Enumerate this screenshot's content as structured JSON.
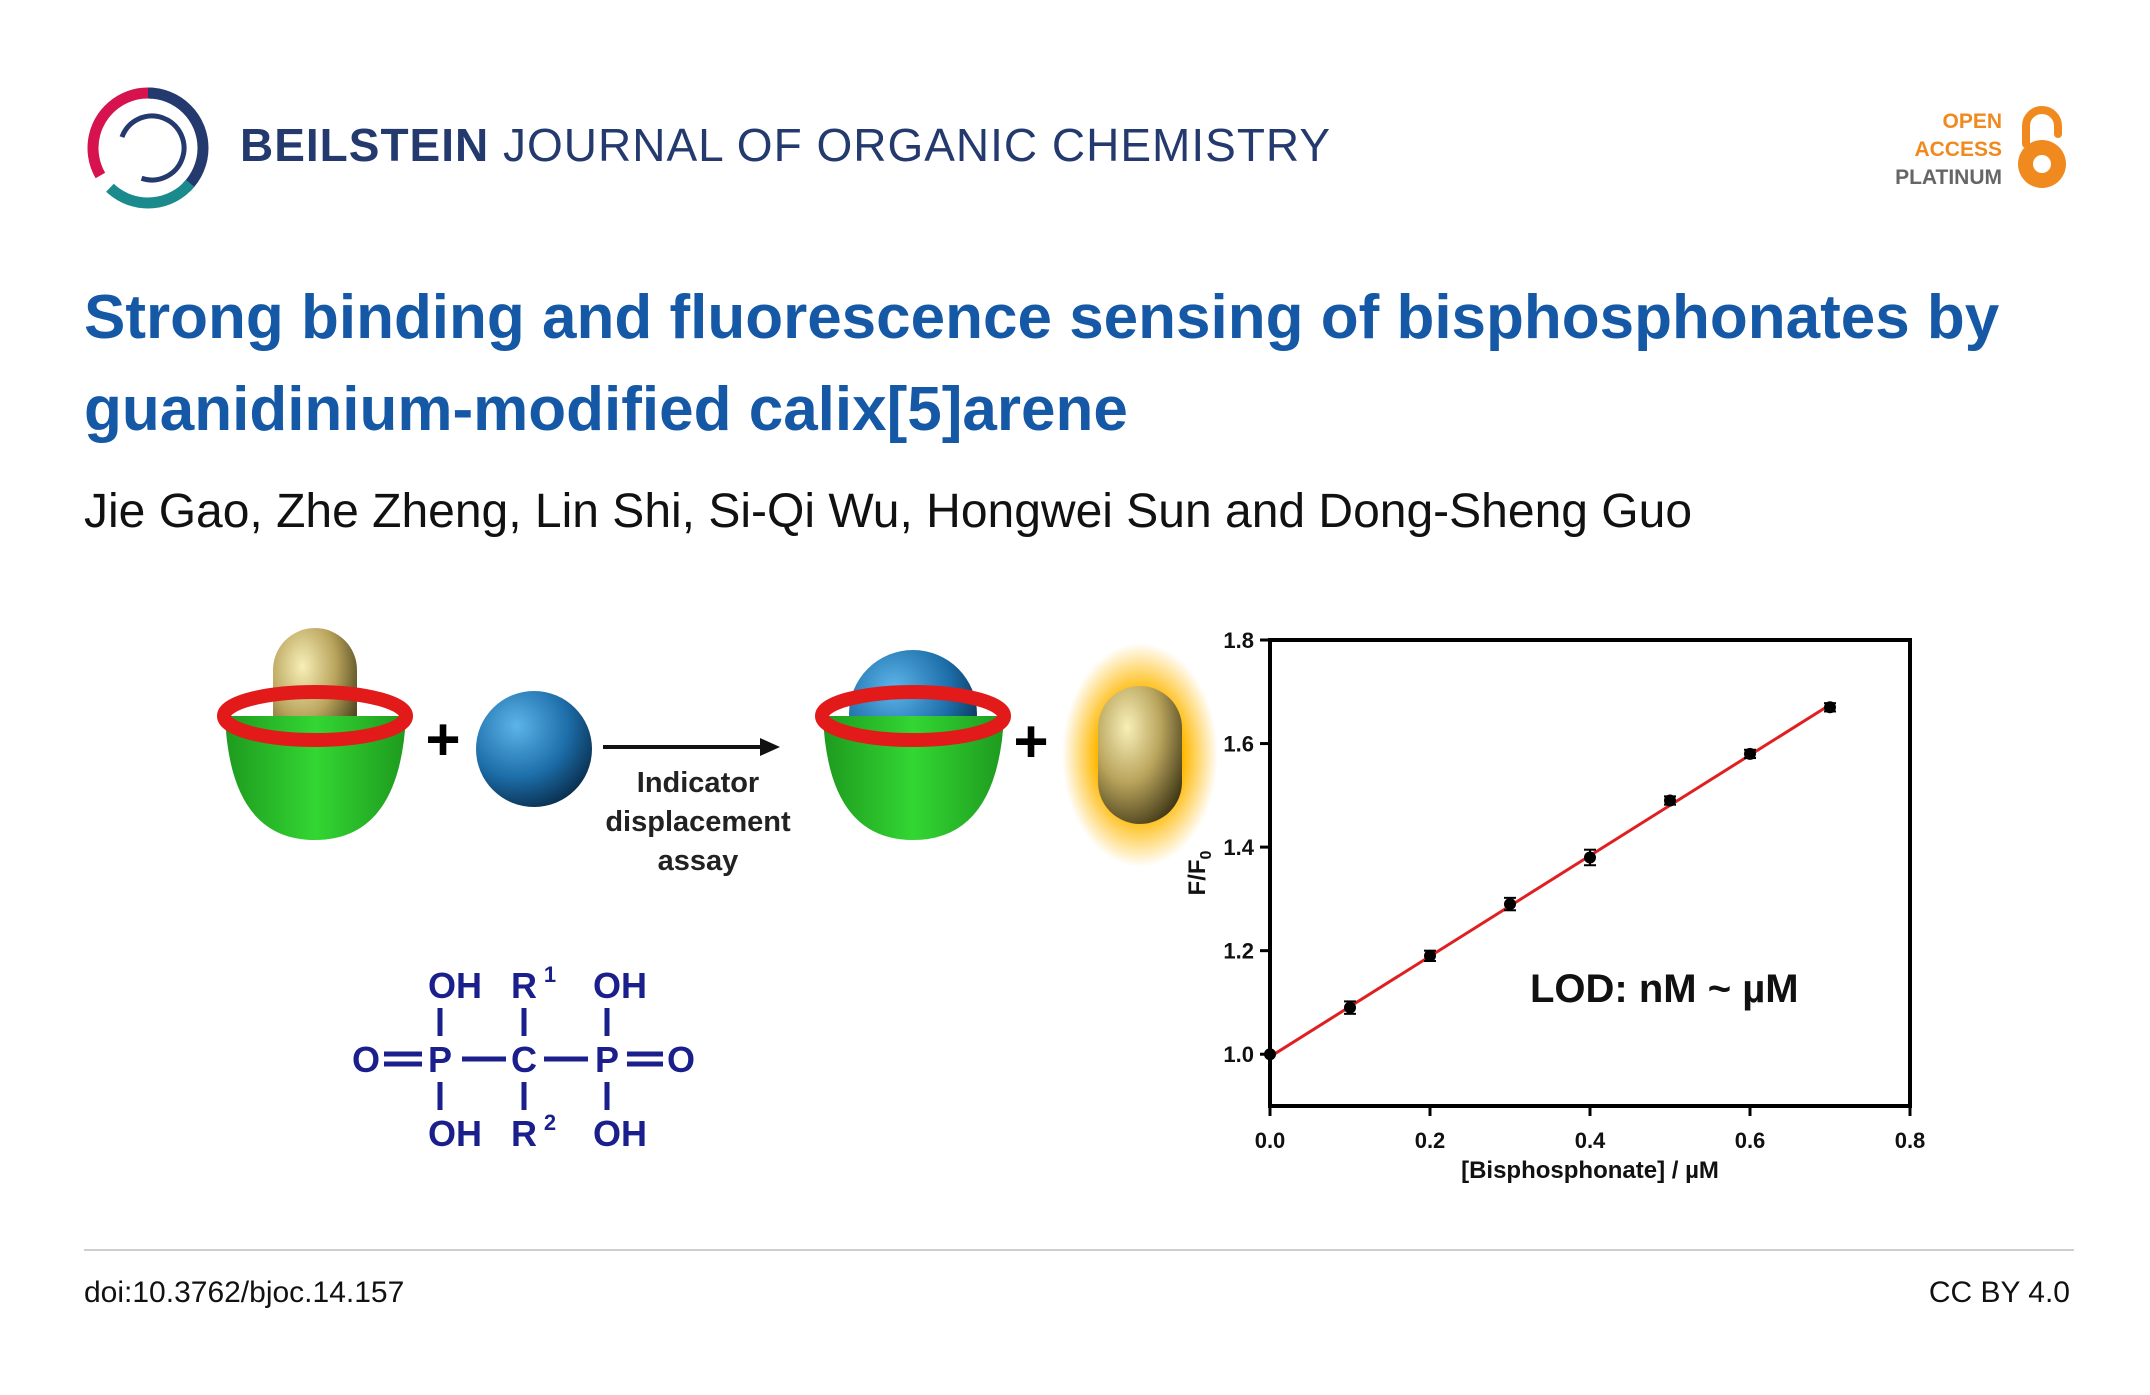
{
  "journal": {
    "name_bold": "BEILSTEIN",
    "name_rest": "JOURNAL OF ORGANIC CHEMISTRY"
  },
  "badge": {
    "line1": "OPEN",
    "line2": "ACCESS",
    "line3": "PLATINUM"
  },
  "article": {
    "title": "Strong binding and fluorescence sensing of bisphosphonates by guanidinium-modified calix[5]arene",
    "authors": "Jie Gao, Zhe Zheng, Lin Shi, Si-Qi Wu, Hongwei Sun and Dong-Sheng Guo"
  },
  "scheme": {
    "plus1": "+",
    "plus2": "+",
    "arrow_label": [
      "Indicator",
      "displacement",
      "assay"
    ]
  },
  "structure": {
    "top": [
      "OH",
      "R",
      "OH"
    ],
    "top_sup": "1",
    "middle": [
      "O",
      "P",
      "C",
      "P",
      "O"
    ],
    "bottom": [
      "OH",
      "R",
      "OH"
    ],
    "bottom_sup": "2"
  },
  "chart_data": {
    "type": "scatter",
    "xlabel": "[Bisphosphonate] / µM",
    "ylabel": "F/F",
    "ylabel_sub": "0",
    "xlim": [
      0.0,
      0.8
    ],
    "ylim": [
      0.9,
      1.8
    ],
    "xticks": [
      "0.0",
      "0.2",
      "0.4",
      "0.6",
      "0.8"
    ],
    "yticks": [
      "1.0",
      "1.2",
      "1.4",
      "1.6",
      "1.8"
    ],
    "xtick_values": [
      0.0,
      0.2,
      0.4,
      0.6,
      0.8
    ],
    "ytick_values": [
      1.0,
      1.2,
      1.4,
      1.6,
      1.8
    ],
    "series": [
      {
        "x": [
          0.0,
          0.1,
          0.2,
          0.3,
          0.4,
          0.5,
          0.6,
          0.7
        ],
        "y": [
          1.0,
          1.09,
          1.19,
          1.29,
          1.38,
          1.49,
          1.58,
          1.67
        ],
        "err": [
          0.0,
          0.012,
          0.01,
          0.012,
          0.015,
          0.008,
          0.008,
          0.008
        ],
        "color": "#000000"
      }
    ],
    "fit": {
      "x": [
        0.0,
        0.7
      ],
      "y": [
        0.995,
        1.675
      ],
      "color": "#e02020"
    },
    "annotation": "LOD: nM ~ µM"
  },
  "footer": {
    "doi": "doi:10.3762/bjoc.14.157",
    "license": "CC BY 4.0"
  },
  "colors": {
    "title": "#1558a5",
    "journal": "#243a6e",
    "oa": "#f18a1e",
    "structure": "#1a1f8c"
  }
}
